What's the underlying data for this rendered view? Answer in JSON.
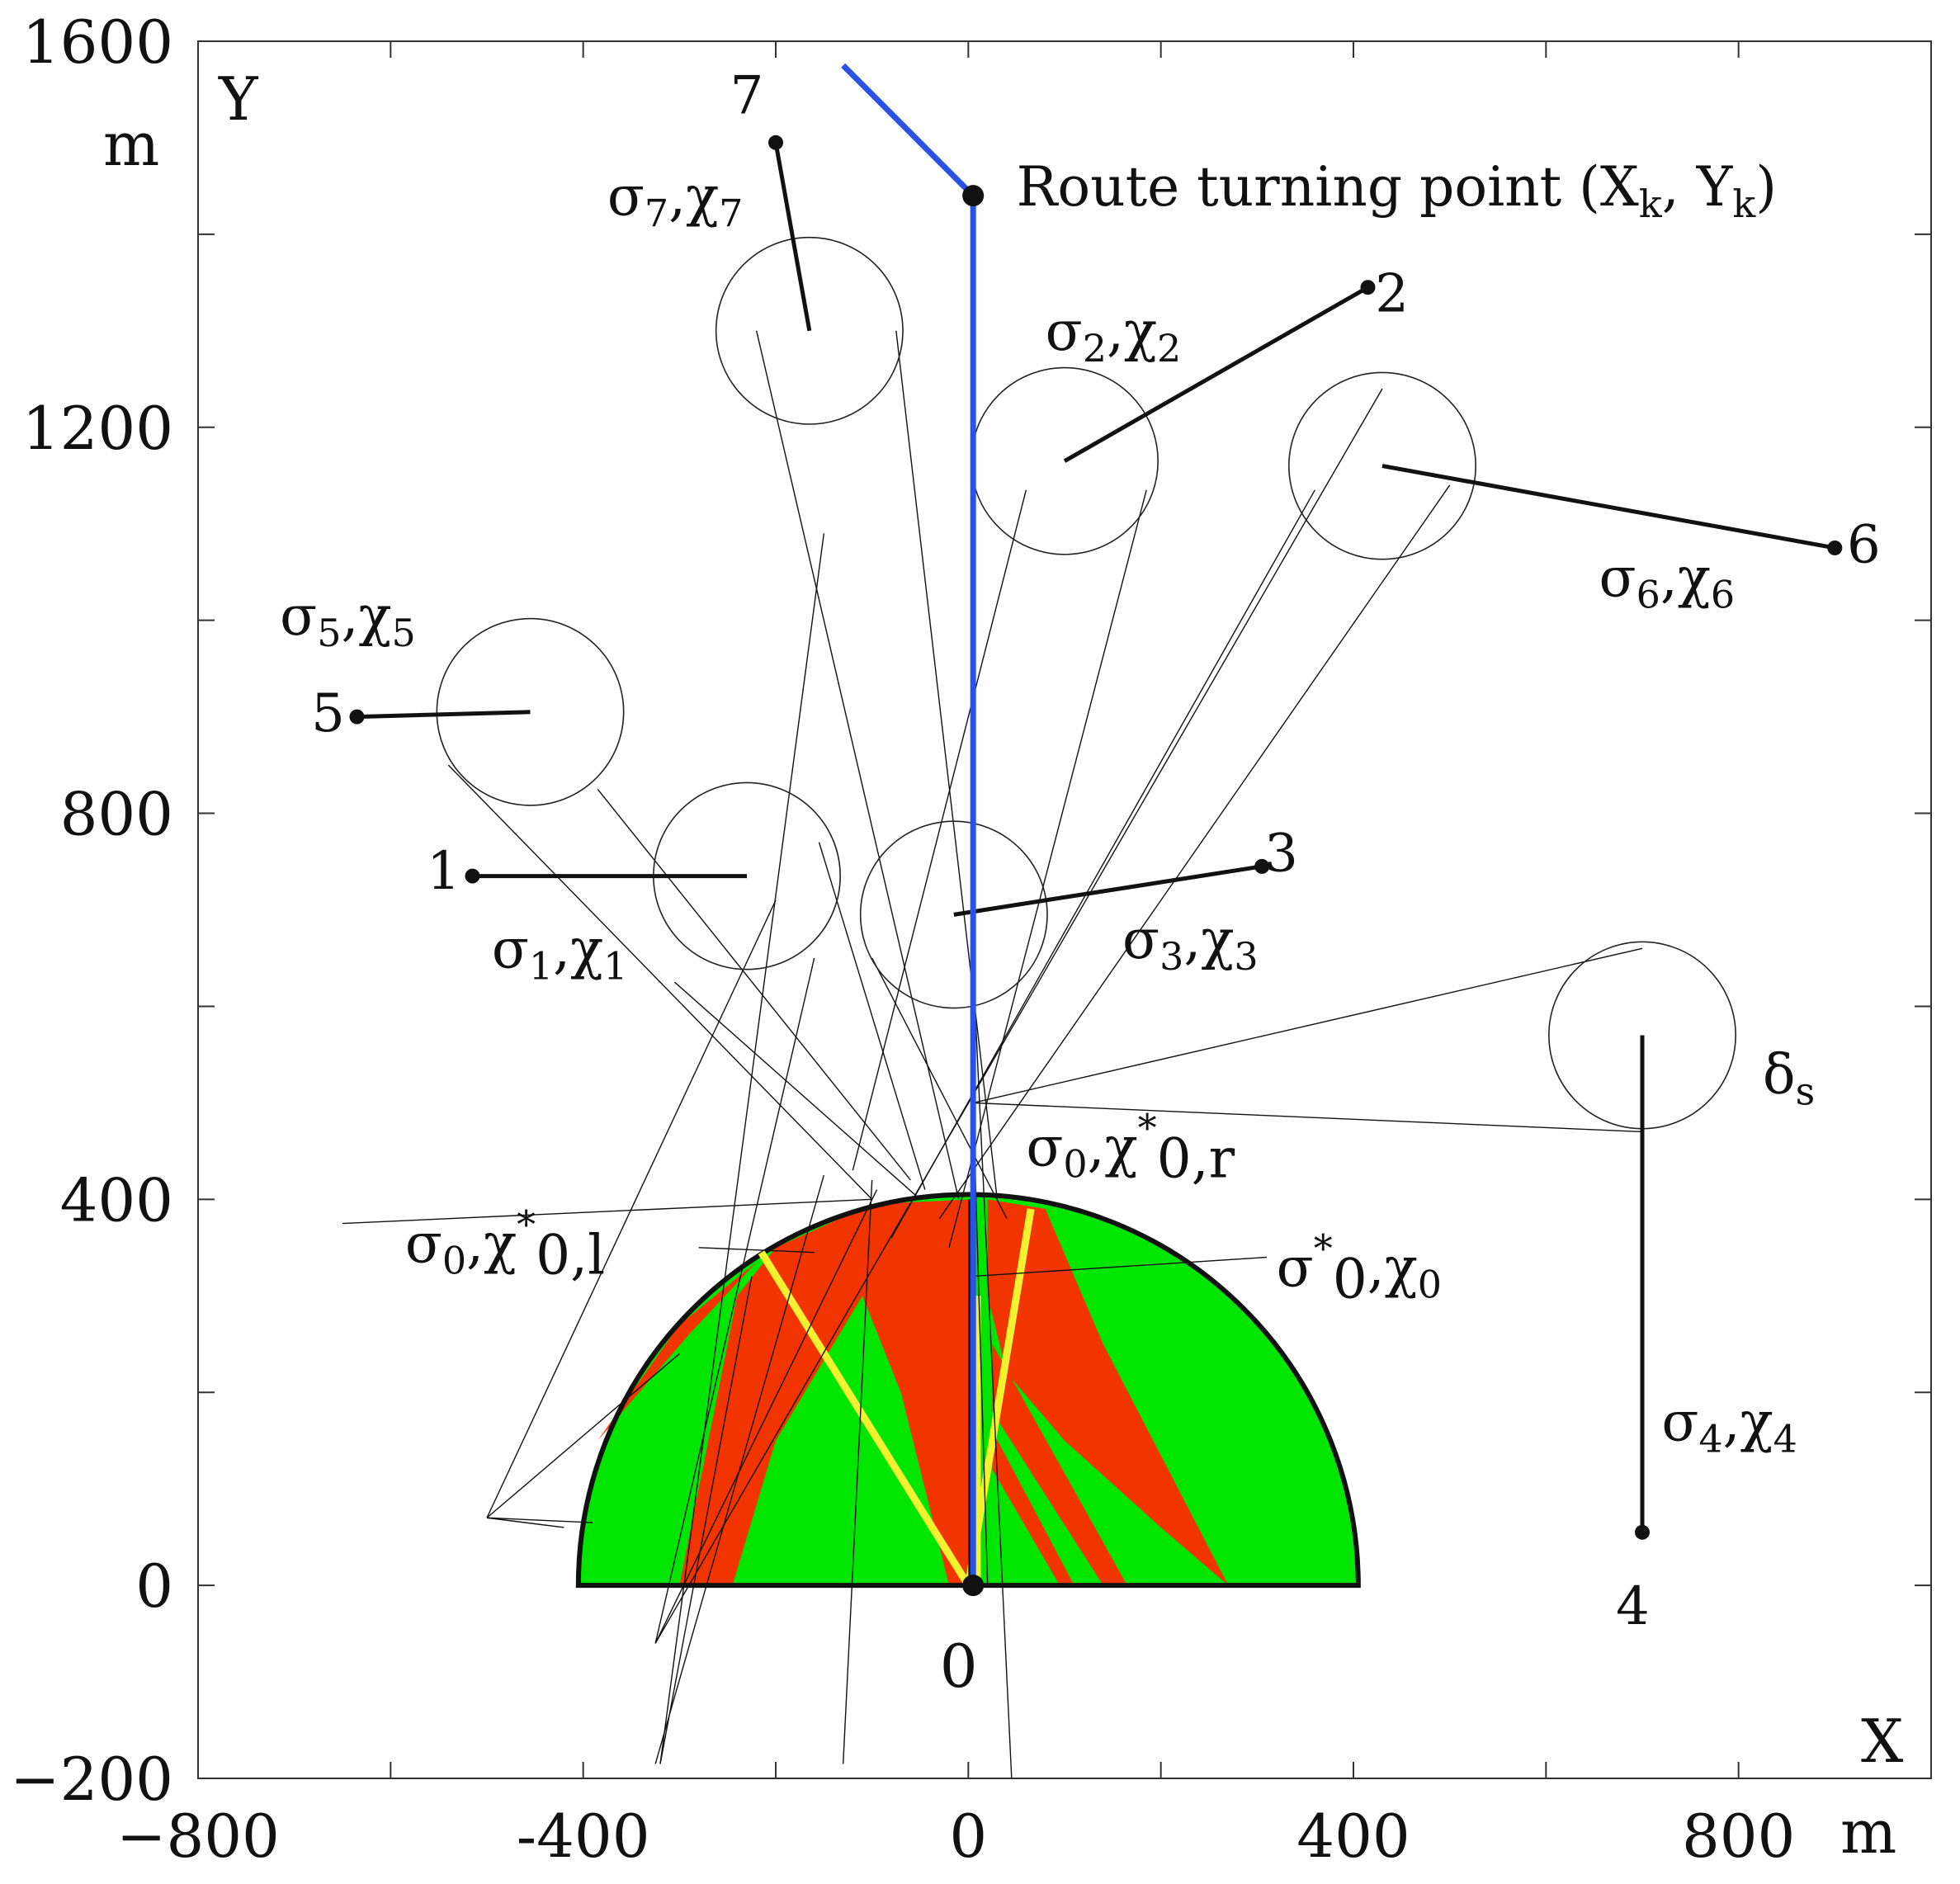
{
  "axes": {
    "x_name": "X",
    "x_unit": "m",
    "y_name": "Y",
    "y_unit": "m",
    "x_range": [
      -800,
      1000
    ],
    "y_range": [
      -200,
      1600
    ],
    "x_ticks": [
      {
        "value": -800,
        "label": "−800"
      },
      {
        "value": -400,
        "label": "-400"
      },
      {
        "value": 0,
        "label": "0"
      },
      {
        "value": 400,
        "label": "400"
      },
      {
        "value": 800,
        "label": "800"
      }
    ],
    "y_ticks": [
      {
        "value": 1600,
        "label": "1600"
      },
      {
        "value": 1200,
        "label": "1200"
      },
      {
        "value": 800,
        "label": "800"
      },
      {
        "value": 400,
        "label": "400"
      },
      {
        "value": 0,
        "label": "0"
      },
      {
        "value": -200,
        "label": "−200"
      }
    ],
    "minor_step": 200
  },
  "colors": {
    "route": "#2b52e6",
    "safe_zone": "#00e600",
    "danger_zone": "#ff2a00",
    "boundary_rays": "#f2f230",
    "lines": "#111111"
  },
  "sector": {
    "center": [
      0,
      0
    ],
    "radius": 405
  },
  "route": {
    "points": [
      [
        -130,
        1575
      ],
      [
        5,
        1440
      ],
      [
        5,
        400
      ],
      [
        5,
        0
      ]
    ],
    "turning_label": "Route turning point (X",
    "turning_label_sub1": "k",
    "turning_label_mid": ", Y",
    "turning_label_sub2": "k",
    "turning_label_end": ")"
  },
  "origin_label": "0",
  "targets": [
    {
      "id": "1",
      "label": "1",
      "start": [
        -515,
        735
      ],
      "circle": [
        -230,
        735
      ],
      "radius": 97,
      "sigma_sub": "1",
      "chi_sub": "1"
    },
    {
      "id": "2",
      "label": "2",
      "start": [
        415,
        1345
      ],
      "circle": [
        100,
        1165
      ],
      "radius": 97,
      "sigma_sub": "2",
      "chi_sub": "2"
    },
    {
      "id": "3",
      "label": "3",
      "start": [
        305,
        745
      ],
      "circle": [
        -15,
        695
      ],
      "radius": 97,
      "sigma_sub": "3",
      "chi_sub": "3"
    },
    {
      "id": "4",
      "label": "4",
      "start": [
        700,
        55
      ],
      "circle": [
        700,
        570
      ],
      "radius": 97,
      "sigma_sub": "4",
      "chi_sub": "4"
    },
    {
      "id": "5",
      "label": "5",
      "start": [
        -635,
        900
      ],
      "circle": [
        -455,
        905
      ],
      "radius": 97,
      "sigma_sub": "5",
      "chi_sub": "5"
    },
    {
      "id": "6",
      "label": "6",
      "start": [
        900,
        1075
      ],
      "circle": [
        430,
        1160
      ],
      "radius": 97,
      "sigma_sub": "6",
      "chi_sub": "6"
    },
    {
      "id": "7",
      "label": "7",
      "start": [
        -200,
        1495
      ],
      "circle": [
        -165,
        1300
      ],
      "radius": 97,
      "sigma_sub": "7",
      "chi_sub": "7"
    }
  ],
  "annotations": {
    "sigma": "σ",
    "chi": "χ",
    "comma": ",",
    "delta": "δ",
    "delta_sub": "s",
    "star": "*",
    "sub_0": "0",
    "sub_0l": "0,l",
    "sub_0r": "0,r"
  }
}
